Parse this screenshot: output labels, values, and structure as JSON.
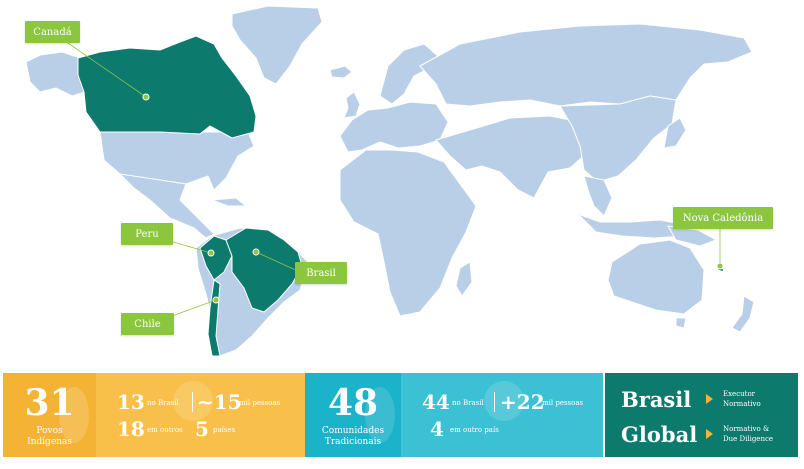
{
  "map": {
    "highlight_color": "#0d7a6e",
    "land_color": "#b9cfe8",
    "marker_color": "#8cc63f",
    "labels": {
      "canada": "Canadá",
      "peru": "Peru",
      "brasil": "Brasil",
      "chile": "Chile",
      "nova_caledonia": "Nova Caledônia"
    }
  },
  "stats": {
    "indigenous": {
      "total": "31",
      "label_line1": "Povos",
      "label_line2": "Indígenas",
      "brasil_count": "13",
      "brasil_text": "no Brasil",
      "people_count": "~15",
      "people_text": "mil pessoas",
      "other_count": "18",
      "other_text": "em outros",
      "countries_count": "5",
      "countries_text": "países",
      "color_dark": "#f5b335",
      "color_light": "#f8c04a"
    },
    "traditional": {
      "total": "48",
      "label_line1": "Comunidades",
      "label_line2": "Tradicionais",
      "brasil_count": "44",
      "brasil_text": "no Brasil",
      "people_count": "+22",
      "people_text": "mil pessoas",
      "other_count": "4",
      "other_text": "em outro país",
      "color_dark": "#1ab3c9",
      "color_light": "#3cc0d3"
    },
    "scope": {
      "brasil_label": "Brasil",
      "brasil_role_1": "Executor",
      "brasil_role_2": "Normativo",
      "global_label": "Global",
      "global_role_1": "Normativo &",
      "global_role_2": "Due Diligence",
      "color": "#0d7a6e"
    }
  }
}
